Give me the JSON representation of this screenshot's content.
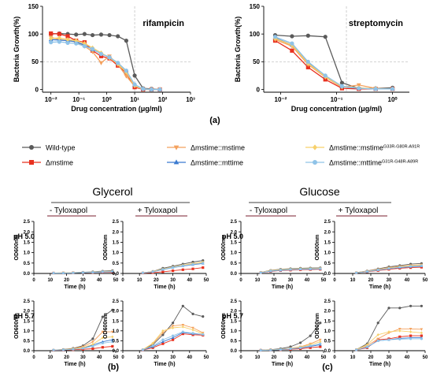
{
  "colors": {
    "wt": "#5a5a5a",
    "ko": "#e8311f",
    "comp": "#f4a15d",
    "mut": "#3b7bd0",
    "comp_mut": "#f7d06b",
    "mut_mut": "#8fc3e8"
  },
  "panel_labels": {
    "a": "(a)",
    "b": "(b)",
    "c": "(c)"
  },
  "legend": [
    {
      "key": "wt",
      "marker": "circle",
      "label": "Wild-type",
      "sup": ""
    },
    {
      "key": "comp",
      "marker": "triangle-down",
      "label": "Δmstime::mstime",
      "sup": ""
    },
    {
      "key": "comp_mut",
      "marker": "diamond",
      "label": "Δmstime::mstime",
      "sup": "G33R-G80R-A91R"
    },
    {
      "key": "ko",
      "marker": "square",
      "label": "Δmstime",
      "sup": ""
    },
    {
      "key": "mut",
      "marker": "triangle",
      "label": "Δmstime::mttime",
      "sup": ""
    },
    {
      "key": "mut_mut",
      "marker": "circle",
      "label": "Δmstime::mttime",
      "sup": "G31R-G48R-A89R"
    }
  ],
  "group_titles": {
    "glycerol": "Glycerol",
    "glucose": "Glucose"
  },
  "conditions": {
    "minus": "- Tyloxapol",
    "plus": "+ Tyloxapol"
  },
  "row_labels": {
    "ph50": "pH 5.0",
    "ph57": "pH 5.7"
  },
  "chart_data": [
    {
      "type": "line",
      "id": "rif",
      "annotation": "rifampicin",
      "xlabel": "Drug concentration (μg/ml)",
      "ylabel": "Bacteria Growth(%)",
      "xscale": "log",
      "xlim": [
        0.005,
        1000
      ],
      "ylim": [
        -5,
        150
      ],
      "xticks": [
        "10⁻²",
        "10⁻¹",
        "10⁰",
        "10¹",
        "10²",
        "10³"
      ],
      "yticks": [
        0,
        50,
        100,
        150
      ],
      "ref_x": 10,
      "ref_y": 50,
      "x": [
        0.01,
        0.02,
        0.04,
        0.08,
        0.16,
        0.31,
        0.63,
        1.25,
        2.5,
        5,
        10,
        20,
        40,
        80
      ],
      "series": [
        {
          "key": "wt",
          "values": [
            100,
            101,
            100,
            99,
            100,
            98,
            99,
            98,
            96,
            88,
            25,
            2,
            1,
            0
          ]
        },
        {
          "key": "ko",
          "values": [
            101,
            100,
            96,
            88,
            85,
            70,
            60,
            56,
            43,
            30,
            4,
            0,
            0,
            0
          ]
        },
        {
          "key": "comp",
          "values": [
            94,
            90,
            88,
            86,
            78,
            68,
            48,
            60,
            45,
            24,
            6,
            0,
            0,
            0
          ]
        },
        {
          "key": "mut",
          "values": [
            90,
            89,
            88,
            86,
            80,
            72,
            65,
            58,
            47,
            32,
            8,
            1,
            0,
            0
          ]
        },
        {
          "key": "comp_mut",
          "values": [
            92,
            93,
            90,
            88,
            83,
            75,
            66,
            57,
            46,
            31,
            7,
            1,
            0,
            0
          ]
        },
        {
          "key": "mut_mut",
          "values": [
            85,
            86,
            84,
            83,
            78,
            73,
            64,
            58,
            48,
            34,
            9,
            1,
            0,
            0
          ]
        }
      ]
    },
    {
      "type": "line",
      "id": "strep",
      "annotation": "streptomycin",
      "xlabel": "Drug concentration (μg/ml)",
      "ylabel": "Bacteria Growth(%)",
      "xscale": "log",
      "xlim": [
        0.005,
        2
      ],
      "ylim": [
        -5,
        150
      ],
      "xticks": [
        "10⁻²",
        "10⁻¹",
        "10⁰"
      ],
      "yticks": [
        0,
        50,
        100,
        150
      ],
      "ref_x": 0.15,
      "ref_y": 50,
      "x": [
        0.008,
        0.016,
        0.031,
        0.063,
        0.125,
        0.25,
        0.5,
        1
      ],
      "series": [
        {
          "key": "wt",
          "values": [
            98,
            96,
            97,
            95,
            12,
            2,
            2,
            3
          ]
        },
        {
          "key": "ko",
          "values": [
            88,
            70,
            40,
            18,
            2,
            1,
            1,
            1
          ]
        },
        {
          "key": "comp",
          "values": [
            90,
            78,
            45,
            22,
            4,
            8,
            2,
            1
          ]
        },
        {
          "key": "mut",
          "values": [
            93,
            80,
            48,
            24,
            5,
            2,
            1,
            1
          ]
        },
        {
          "key": "comp_mut",
          "values": [
            92,
            80,
            47,
            23,
            5,
            3,
            1,
            1
          ]
        },
        {
          "key": "mut_mut",
          "values": [
            95,
            83,
            50,
            25,
            6,
            2,
            1,
            1
          ]
        }
      ]
    },
    {
      "type": "line",
      "id": "gly-minus-50",
      "xlabel": "Time (h)",
      "ylabel": "OD600nm",
      "xlim": [
        0,
        50
      ],
      "ylim": [
        0,
        2.5
      ],
      "xticks": [
        0,
        10,
        20,
        30,
        40,
        50
      ],
      "yticks": [
        0.0,
        0.5,
        1.0,
        1.5,
        2.0,
        2.5
      ],
      "x": [
        12,
        18,
        24,
        30,
        36,
        42,
        48
      ],
      "series": [
        {
          "key": "wt",
          "values": [
            0.02,
            0.03,
            0.04,
            0.06,
            0.08,
            0.11,
            0.14
          ]
        },
        {
          "key": "ko",
          "values": [
            0.02,
            0.02,
            0.03,
            0.04,
            0.05,
            0.06,
            0.07
          ]
        },
        {
          "key": "comp",
          "values": [
            0.02,
            0.03,
            0.03,
            0.05,
            0.06,
            0.08,
            0.1
          ]
        },
        {
          "key": "mut",
          "values": [
            0.02,
            0.02,
            0.03,
            0.04,
            0.06,
            0.07,
            0.09
          ]
        },
        {
          "key": "comp_mut",
          "values": [
            0.02,
            0.03,
            0.04,
            0.05,
            0.07,
            0.09,
            0.11
          ]
        },
        {
          "key": "mut_mut",
          "values": [
            0.02,
            0.02,
            0.03,
            0.05,
            0.06,
            0.08,
            0.1
          ]
        }
      ]
    },
    {
      "type": "line",
      "id": "gly-plus-50",
      "xlabel": "Time (h)",
      "ylabel": "OD600nm",
      "xlim": [
        0,
        50
      ],
      "ylim": [
        0,
        2.5
      ],
      "xticks": [
        0,
        10,
        20,
        30,
        40,
        50
      ],
      "yticks": [
        0.0,
        0.5,
        1.0,
        1.5,
        2.0,
        2.5
      ],
      "x": [
        12,
        18,
        24,
        30,
        36,
        42,
        48
      ],
      "series": [
        {
          "key": "wt",
          "values": [
            0.03,
            0.1,
            0.25,
            0.35,
            0.45,
            0.55,
            0.62
          ]
        },
        {
          "key": "ko",
          "values": [
            0.02,
            0.04,
            0.08,
            0.13,
            0.18,
            0.22,
            0.28
          ]
        },
        {
          "key": "comp",
          "values": [
            0.03,
            0.09,
            0.2,
            0.3,
            0.38,
            0.46,
            0.52
          ]
        },
        {
          "key": "mut",
          "values": [
            0.03,
            0.08,
            0.18,
            0.28,
            0.36,
            0.42,
            0.48
          ]
        },
        {
          "key": "comp_mut",
          "values": [
            0.03,
            0.09,
            0.21,
            0.31,
            0.4,
            0.48,
            0.55
          ]
        },
        {
          "key": "mut_mut",
          "values": [
            0.03,
            0.08,
            0.19,
            0.29,
            0.37,
            0.44,
            0.5
          ]
        }
      ]
    },
    {
      "type": "line",
      "id": "gly-minus-57",
      "xlabel": "Time (h)",
      "ylabel": "OD600nm",
      "xlim": [
        0,
        50
      ],
      "ylim": [
        0,
        2.5
      ],
      "xticks": [
        0,
        10,
        20,
        30,
        40,
        50
      ],
      "yticks": [
        0.0,
        0.5,
        1.0,
        1.5,
        2.0,
        2.5
      ],
      "x": [
        12,
        18,
        24,
        30,
        36,
        42,
        48
      ],
      "series": [
        {
          "key": "wt",
          "values": [
            0.03,
            0.06,
            0.12,
            0.25,
            0.6,
            1.7,
            2.05
          ]
        },
        {
          "key": "ko",
          "values": [
            0.02,
            0.03,
            0.05,
            0.07,
            0.1,
            0.17,
            0.22
          ]
        },
        {
          "key": "comp",
          "values": [
            0.03,
            0.05,
            0.1,
            0.2,
            0.45,
            0.95,
            0.95
          ]
        },
        {
          "key": "mut",
          "values": [
            0.03,
            0.04,
            0.08,
            0.14,
            0.28,
            0.45,
            0.55
          ]
        },
        {
          "key": "comp_mut",
          "values": [
            0.03,
            0.05,
            0.09,
            0.16,
            0.32,
            0.65,
            0.7
          ]
        },
        {
          "key": "mut_mut",
          "values": [
            0.03,
            0.04,
            0.07,
            0.12,
            0.22,
            0.38,
            0.45
          ]
        }
      ]
    },
    {
      "type": "line",
      "id": "gly-plus-57",
      "xlabel": "Time (h)",
      "ylabel": "OD600nm",
      "xlim": [
        0,
        50
      ],
      "ylim": [
        0,
        2.5
      ],
      "xticks": [
        0,
        10,
        20,
        30,
        40,
        50
      ],
      "yticks": [
        0.0,
        0.5,
        1.0,
        1.5,
        2.0,
        2.5
      ],
      "x": [
        12,
        18,
        24,
        30,
        36,
        42,
        48
      ],
      "series": [
        {
          "key": "wt",
          "values": [
            0.05,
            0.3,
            0.8,
            1.4,
            2.25,
            1.85,
            1.72
          ]
        },
        {
          "key": "ko",
          "values": [
            0.03,
            0.15,
            0.35,
            0.55,
            0.85,
            0.8,
            0.78
          ]
        },
        {
          "key": "comp",
          "values": [
            0.05,
            0.35,
            0.9,
            1.25,
            1.3,
            1.15,
            0.9
          ]
        },
        {
          "key": "mut",
          "values": [
            0.04,
            0.2,
            0.45,
            0.65,
            0.92,
            0.85,
            0.82
          ]
        },
        {
          "key": "comp_mut",
          "values": [
            0.05,
            0.38,
            1.0,
            1.15,
            1.2,
            1.05,
            0.85
          ]
        },
        {
          "key": "mut_mut",
          "values": [
            0.04,
            0.25,
            0.55,
            0.75,
            0.95,
            0.88,
            0.82
          ]
        }
      ]
    },
    {
      "type": "line",
      "id": "glu-minus-50",
      "xlabel": "Time (h)",
      "ylabel": "OD600nm",
      "xlim": [
        0,
        50
      ],
      "ylim": [
        0,
        2.5
      ],
      "xticks": [
        0,
        10,
        20,
        30,
        40,
        50
      ],
      "yticks": [
        0.0,
        0.5,
        1.0,
        1.5,
        2.0,
        2.5
      ],
      "x": [
        12,
        18,
        24,
        30,
        36,
        42,
        48
      ],
      "series": [
        {
          "key": "wt",
          "values": [
            0.05,
            0.15,
            0.2,
            0.23,
            0.25,
            0.26,
            0.27
          ]
        },
        {
          "key": "ko",
          "values": [
            0.04,
            0.1,
            0.14,
            0.16,
            0.18,
            0.19,
            0.2
          ]
        },
        {
          "key": "comp",
          "values": [
            0.05,
            0.13,
            0.17,
            0.2,
            0.22,
            0.23,
            0.24
          ]
        },
        {
          "key": "mut",
          "values": [
            0.04,
            0.11,
            0.15,
            0.18,
            0.2,
            0.21,
            0.22
          ]
        },
        {
          "key": "comp_mut",
          "values": [
            0.05,
            0.14,
            0.18,
            0.21,
            0.23,
            0.24,
            0.25
          ]
        },
        {
          "key": "mut_mut",
          "values": [
            0.04,
            0.12,
            0.16,
            0.19,
            0.21,
            0.22,
            0.23
          ]
        }
      ]
    },
    {
      "type": "line",
      "id": "glu-plus-50",
      "xlabel": "Time (h)",
      "ylabel": "OD600nm",
      "xlim": [
        0,
        50
      ],
      "ylim": [
        0,
        2.5
      ],
      "xticks": [
        0,
        10,
        20,
        30,
        40,
        50
      ],
      "yticks": [
        0.0,
        0.5,
        1.0,
        1.5,
        2.0,
        2.5
      ],
      "x": [
        12,
        18,
        24,
        30,
        36,
        42,
        48
      ],
      "series": [
        {
          "key": "wt",
          "values": [
            0.04,
            0.12,
            0.22,
            0.32,
            0.38,
            0.45,
            0.48
          ]
        },
        {
          "key": "ko",
          "values": [
            0.03,
            0.08,
            0.14,
            0.2,
            0.25,
            0.28,
            0.3
          ]
        },
        {
          "key": "comp",
          "values": [
            0.04,
            0.11,
            0.2,
            0.28,
            0.34,
            0.39,
            0.42
          ]
        },
        {
          "key": "mut",
          "values": [
            0.03,
            0.09,
            0.16,
            0.23,
            0.28,
            0.32,
            0.35
          ]
        },
        {
          "key": "comp_mut",
          "values": [
            0.04,
            0.1,
            0.18,
            0.26,
            0.32,
            0.37,
            0.4
          ]
        },
        {
          "key": "mut_mut",
          "values": [
            0.03,
            0.09,
            0.17,
            0.24,
            0.3,
            0.34,
            0.37
          ]
        }
      ]
    },
    {
      "type": "line",
      "id": "glu-minus-57",
      "xlabel": "Time (h)",
      "ylabel": "OD600nm",
      "xlim": [
        0,
        50
      ],
      "ylim": [
        0,
        2.5
      ],
      "xticks": [
        0,
        10,
        20,
        30,
        40,
        50
      ],
      "yticks": [
        0.0,
        0.5,
        1.0,
        1.5,
        2.0,
        2.5
      ],
      "x": [
        12,
        18,
        24,
        30,
        36,
        42,
        48
      ],
      "series": [
        {
          "key": "wt",
          "values": [
            0.03,
            0.05,
            0.1,
            0.2,
            0.4,
            0.75,
            1.4
          ]
        },
        {
          "key": "ko",
          "values": [
            0.02,
            0.03,
            0.05,
            0.07,
            0.1,
            0.15,
            0.2
          ]
        },
        {
          "key": "comp",
          "values": [
            0.02,
            0.04,
            0.07,
            0.12,
            0.2,
            0.35,
            0.55
          ]
        },
        {
          "key": "mut",
          "values": [
            0.02,
            0.03,
            0.06,
            0.09,
            0.14,
            0.22,
            0.3
          ]
        },
        {
          "key": "comp_mut",
          "values": [
            0.02,
            0.04,
            0.07,
            0.11,
            0.18,
            0.3,
            0.45
          ]
        },
        {
          "key": "mut_mut",
          "values": [
            0.02,
            0.03,
            0.06,
            0.1,
            0.15,
            0.25,
            0.35
          ]
        }
      ]
    },
    {
      "type": "line",
      "id": "glu-plus-57",
      "xlabel": "Time (h)",
      "ylabel": "OD600nm",
      "xlim": [
        0,
        50
      ],
      "ylim": [
        0,
        2.5
      ],
      "xticks": [
        0,
        10,
        20,
        30,
        40,
        50
      ],
      "yticks": [
        0.0,
        0.5,
        1.0,
        1.5,
        2.0,
        2.5
      ],
      "x": [
        12,
        18,
        24,
        30,
        36,
        42,
        48
      ],
      "series": [
        {
          "key": "wt",
          "values": [
            0.05,
            0.35,
            1.4,
            2.15,
            2.15,
            2.25,
            2.25
          ]
        },
        {
          "key": "ko",
          "values": [
            0.04,
            0.15,
            0.55,
            0.6,
            0.7,
            0.75,
            0.75
          ]
        },
        {
          "key": "comp",
          "values": [
            0.05,
            0.25,
            0.6,
            0.9,
            1.1,
            1.1,
            1.08
          ]
        },
        {
          "key": "mut",
          "values": [
            0.04,
            0.18,
            0.5,
            0.55,
            0.62,
            0.65,
            0.65
          ]
        },
        {
          "key": "comp_mut",
          "values": [
            0.05,
            0.3,
            0.8,
            0.95,
            1.0,
            0.95,
            0.9
          ]
        },
        {
          "key": "mut_mut",
          "values": [
            0.04,
            0.2,
            0.5,
            0.55,
            0.58,
            0.6,
            0.6
          ]
        }
      ]
    }
  ]
}
